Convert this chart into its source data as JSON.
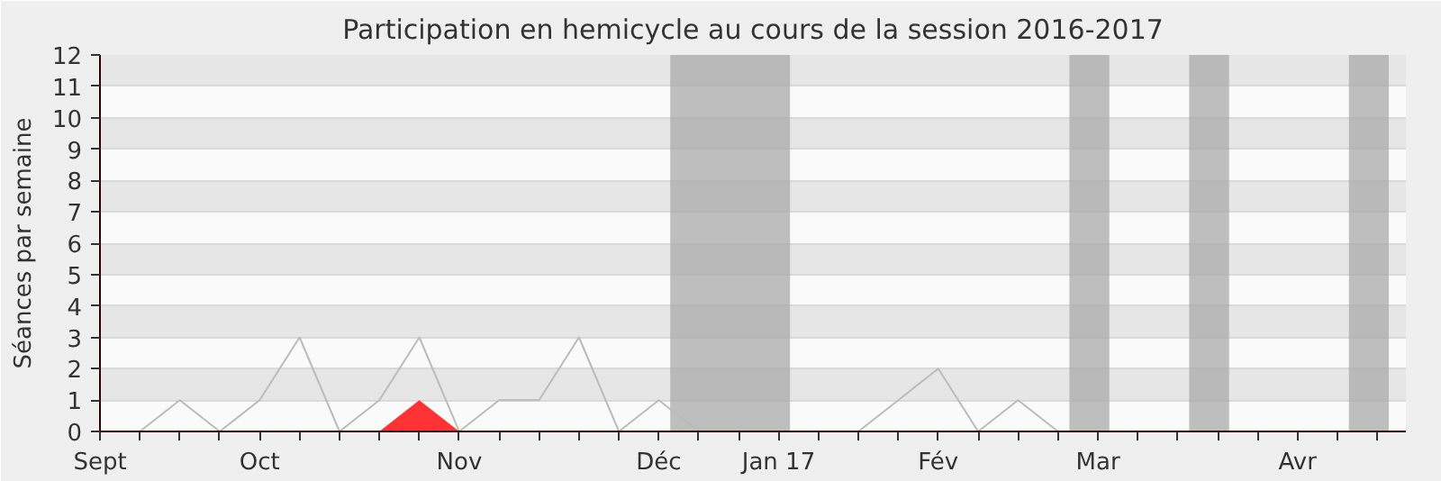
{
  "chart_data": {
    "type": "line",
    "title": "Participation en hemicycle au cours de la session 2016-2017",
    "ylabel": "Séances par semaine",
    "x": [
      "2016-09-07",
      "2016-09-14",
      "2016-09-21",
      "2016-09-28",
      "2016-10-05",
      "2016-10-12",
      "2016-10-19",
      "2016-10-26",
      "2016-11-02",
      "2016-11-09",
      "2016-11-16",
      "2016-11-23",
      "2016-11-30",
      "2016-12-07",
      "2016-12-14",
      "2016-12-21",
      "2016-12-28",
      "2017-01-04",
      "2017-01-11",
      "2017-01-18",
      "2017-01-25",
      "2017-02-01",
      "2017-02-08",
      "2017-02-15",
      "2017-02-22"
    ],
    "series": [
      {
        "color": "#bbbbbb",
        "values": [
          0,
          0,
          1,
          0,
          1,
          3,
          0,
          1,
          3,
          0,
          1,
          1,
          3,
          0,
          1,
          0,
          0,
          0,
          0,
          0,
          1,
          2,
          0,
          1,
          0
        ]
      },
      {
        "type": "area",
        "color": "#ff3333",
        "values": [
          0,
          0,
          0,
          0,
          0,
          0,
          0,
          0,
          1,
          0,
          0,
          0,
          0,
          0,
          0,
          0,
          0,
          0,
          0,
          0,
          0,
          0,
          0,
          0,
          0
        ]
      }
    ],
    "xlim": [
      "2016-09-07",
      "2017-04-24"
    ],
    "xticks": [
      {
        "value": "2016-09-07",
        "label": "Sept"
      },
      {
        "value": "2016-09-14",
        "label": null
      },
      {
        "value": "2016-09-21",
        "label": null
      },
      {
        "value": "2016-09-28",
        "label": null
      },
      {
        "value": "2016-10-05",
        "label": "Oct"
      },
      {
        "value": "2016-10-12",
        "label": null
      },
      {
        "value": "2016-10-19",
        "label": null
      },
      {
        "value": "2016-10-26",
        "label": null
      },
      {
        "value": "2016-11-02",
        "label": null
      },
      {
        "value": "2016-11-09",
        "label": "Nov"
      },
      {
        "value": "2016-11-16",
        "label": null
      },
      {
        "value": "2016-11-23",
        "label": null
      },
      {
        "value": "2016-11-30",
        "label": null
      },
      {
        "value": "2016-12-07",
        "label": null
      },
      {
        "value": "2016-12-14",
        "label": "Déc"
      },
      {
        "value": "2016-12-21",
        "label": null
      },
      {
        "value": "2016-12-28",
        "label": null
      },
      {
        "value": "2017-01-04",
        "label": "Jan 17"
      },
      {
        "value": "2017-01-11",
        "label": null
      },
      {
        "value": "2017-01-18",
        "label": null
      },
      {
        "value": "2017-01-25",
        "label": null
      },
      {
        "value": "2017-02-01",
        "label": "Fév"
      },
      {
        "value": "2017-02-08",
        "label": null
      },
      {
        "value": "2017-02-15",
        "label": null
      },
      {
        "value": "2017-02-22",
        "label": null
      },
      {
        "value": "2017-03-01",
        "label": "Mar"
      },
      {
        "value": "2017-03-08",
        "label": null
      },
      {
        "value": "2017-03-15",
        "label": null
      },
      {
        "value": "2017-03-22",
        "label": null
      },
      {
        "value": "2017-03-29",
        "label": null
      },
      {
        "value": "2017-04-05",
        "label": "Avr"
      },
      {
        "value": "2017-04-12",
        "label": null
      },
      {
        "value": "2017-04-19",
        "label": null
      }
    ],
    "ylim": [
      0,
      12
    ],
    "yticks": [
      0,
      1,
      2,
      3,
      4,
      5,
      6,
      7,
      8,
      9,
      10,
      11,
      12
    ],
    "grid": "y",
    "bands": [
      {
        "axis": "x",
        "from": "2016-12-16",
        "to": "2017-01-06",
        "color": "#aaaaaa"
      },
      {
        "axis": "x",
        "from": "2017-02-24",
        "to": "2017-03-03",
        "color": "#aaaaaa"
      },
      {
        "axis": "x",
        "from": "2017-03-17",
        "to": "2017-03-24",
        "color": "#aaaaaa"
      },
      {
        "axis": "x",
        "from": "2017-04-14",
        "to": "2017-04-21",
        "color": "#aaaaaa"
      }
    ]
  }
}
